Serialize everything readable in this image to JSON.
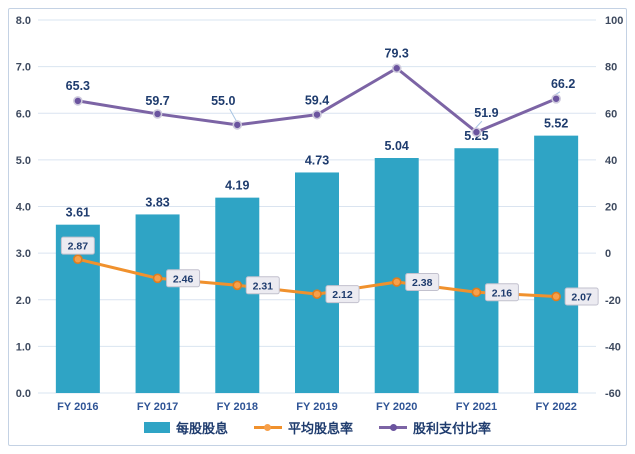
{
  "chart_data": {
    "type": "combo",
    "title": "",
    "categories": [
      "FY 2016",
      "FY 2017",
      "FY 2018",
      "FY 2019",
      "FY 2020",
      "FY 2021",
      "FY 2022"
    ],
    "series": [
      {
        "name": "每股股息",
        "type": "bar",
        "axis": "left",
        "values": [
          3.61,
          3.83,
          4.19,
          4.73,
          5.04,
          5.25,
          5.52
        ],
        "labels": [
          "3.61",
          "3.83",
          "4.19",
          "4.73",
          "5.04",
          "5.25",
          "5.52"
        ]
      },
      {
        "name": "平均股息率",
        "type": "line",
        "axis": "left",
        "values": [
          2.87,
          2.46,
          2.31,
          2.12,
          2.38,
          2.16,
          2.07
        ],
        "labels": [
          "2.87",
          "2.46",
          "2.31",
          "2.12",
          "2.38",
          "2.16",
          "2.07"
        ]
      },
      {
        "name": "股利支付比率",
        "type": "line",
        "axis": "right",
        "values": [
          65.3,
          59.7,
          55.0,
          59.4,
          79.3,
          51.9,
          66.2
        ],
        "labels": [
          "65.3",
          "59.7",
          "55.0",
          "59.4",
          "79.3",
          "51.9",
          "66.2"
        ]
      }
    ],
    "left_axis": {
      "min": 0,
      "max": 8,
      "step": 1,
      "tick_labels": [
        "0.0",
        "1.0",
        "2.0",
        "3.0",
        "4.0",
        "5.0",
        "6.0",
        "7.0",
        "8.0"
      ]
    },
    "right_axis": {
      "min": -60,
      "max": 100,
      "step": 20,
      "tick_labels": [
        "-60",
        "-40",
        "-20",
        "0",
        "20",
        "40",
        "60",
        "80",
        "100"
      ]
    },
    "grid": true,
    "legend_position": "bottom"
  },
  "colors": {
    "bar": "#2FA4C5",
    "orange": "#F0912D",
    "orangeDot": "#F7A04A",
    "orangeRing": "#DE7E20",
    "purple": "#7C64A5",
    "purpleDot": "#6B549F",
    "purpleRing": "#CDC9DC",
    "gridline": "#DAE4F0",
    "frame": "#C4D2E4",
    "leader": "#A9C5E2",
    "boxBg": "#ECEBF1",
    "boxBorder": "#C2C1CE",
    "tickText": "#3E4A5F",
    "categoryText": "#2F5496",
    "valueText": "#1F3C6E"
  }
}
